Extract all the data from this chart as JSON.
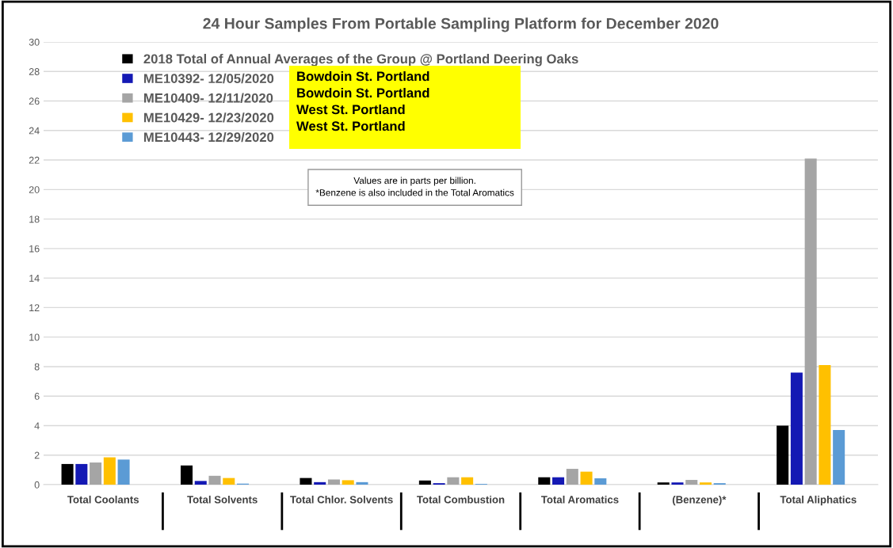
{
  "chart_data": {
    "type": "bar",
    "title": "24 Hour Samples From Portable Sampling Platform for December 2020",
    "categories": [
      "Total Coolants",
      "Total Solvents",
      "Total Chlor. Solvents",
      "Total Combustion",
      "Total Aromatics",
      "(Benzene)*",
      "Total Aliphatics"
    ],
    "series": [
      {
        "name": "2018 Total of Annual Averages of the Group @ Portland Deering Oaks",
        "color": "#000000",
        "values": [
          1.4,
          1.3,
          0.45,
          0.28,
          0.5,
          0.15,
          4.0
        ]
      },
      {
        "name": "ME10392- 12/05/2020",
        "color": "#1419b4",
        "values": [
          1.4,
          0.25,
          0.17,
          0.1,
          0.5,
          0.15,
          7.6
        ]
      },
      {
        "name": "ME10409- 12/11/2020",
        "color": "#a5a5a5",
        "values": [
          1.5,
          0.6,
          0.35,
          0.5,
          1.07,
          0.32,
          22.1
        ]
      },
      {
        "name": "ME10429- 12/23/2020",
        "color": "#ffc000",
        "values": [
          1.85,
          0.45,
          0.3,
          0.5,
          0.88,
          0.15,
          8.1
        ]
      },
      {
        "name": "ME10443- 12/29/2020",
        "color": "#5b9bd5",
        "values": [
          1.7,
          0.07,
          0.17,
          0.05,
          0.43,
          0.1,
          3.7
        ]
      }
    ],
    "ylim": [
      0,
      30
    ],
    "yticks": [
      0,
      2,
      4,
      6,
      8,
      10,
      12,
      14,
      16,
      18,
      20,
      22,
      24,
      26,
      28,
      30
    ],
    "grid": "y",
    "legend": "top left",
    "annotations": [
      "Bowdoin St. Portland\nBowdoin St. Portland\nWest St. Portland\nWest St. Portland",
      "Values are in parts per billion.\n*Benzene is also included in the Total Aromatics"
    ]
  }
}
